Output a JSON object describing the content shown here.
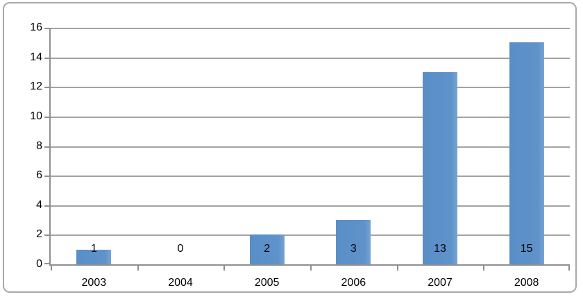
{
  "chart_data": {
    "type": "bar",
    "title": "",
    "xlabel": "",
    "ylabel": "",
    "categories": [
      "2003",
      "2004",
      "2005",
      "2006",
      "2007",
      "2008"
    ],
    "values": [
      1,
      0,
      2,
      3,
      13,
      15
    ],
    "data_labels": [
      "1",
      "0",
      "2",
      "3",
      "13",
      "15"
    ],
    "data_label_position": "inside-base",
    "ylim": [
      0,
      16
    ],
    "ytick_step": 2,
    "yticks": [
      0,
      2,
      4,
      6,
      8,
      10,
      12,
      14,
      16
    ],
    "grid": "horizontal",
    "legend": "none",
    "colors": {
      "bar": "#5e92c9",
      "gridline": "#a3a3a3",
      "axis": "#8f8f8f",
      "frame_border": "#a8a8a8",
      "text": "#000000",
      "background": "#ffffff"
    }
  }
}
